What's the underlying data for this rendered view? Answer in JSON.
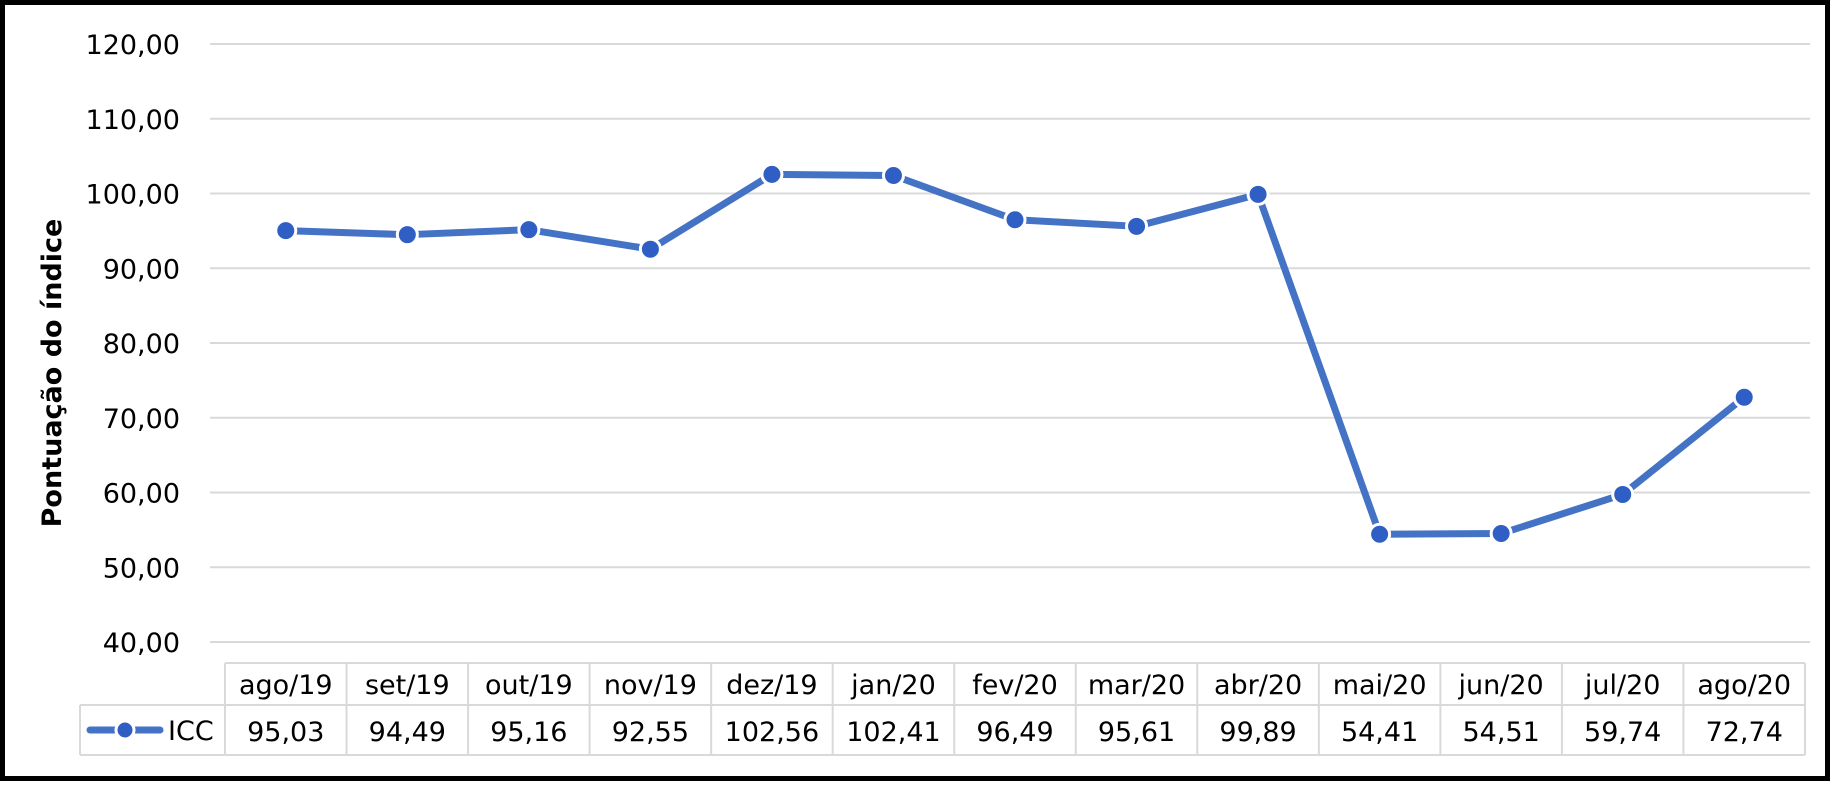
{
  "chart_data": {
    "type": "line",
    "ylabel": "Pontuação do índice",
    "xlabel": "",
    "title": "",
    "categories": [
      "ago/19",
      "set/19",
      "out/19",
      "nov/19",
      "dez/19",
      "jan/20",
      "fev/20",
      "mar/20",
      "abr/20",
      "mai/20",
      "jun/20",
      "jul/20",
      "ago/20"
    ],
    "series": [
      {
        "name": "ICC",
        "values": [
          95.03,
          94.49,
          95.16,
          92.55,
          102.56,
          102.41,
          96.49,
          95.61,
          99.89,
          54.41,
          54.51,
          59.74,
          72.74
        ],
        "value_labels": [
          "95,03",
          "94,49",
          "95,16",
          "92,55",
          "102,56",
          "102,41",
          "96,49",
          "95,61",
          "99,89",
          "54,41",
          "54,51",
          "59,74",
          "72,74"
        ]
      }
    ],
    "ylim": [
      40,
      120
    ],
    "yticks": [
      40,
      50,
      60,
      70,
      80,
      90,
      100,
      110,
      120
    ],
    "ytick_labels": [
      "40,00",
      "50,00",
      "60,00",
      "70,00",
      "80,00",
      "90,00",
      "100,00",
      "110,00",
      "120,00"
    ],
    "grid": true,
    "data_table": true,
    "legend": "data-table-left",
    "colors": {
      "line": "#4472C4",
      "marker_fill": "#2F5FC4",
      "marker_edge": "#FFFFFF",
      "grid": "#D9D9D9",
      "table_border": "#D9D9D9"
    }
  }
}
